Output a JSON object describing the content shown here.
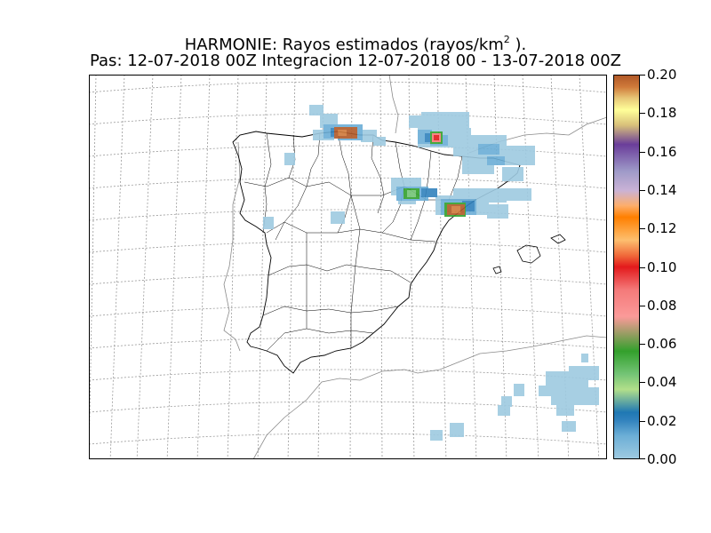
{
  "title": {
    "line1_main": "HARMONIE: Rayos estimados  (rayos/km",
    "line1_exp": "2",
    "line1_end": " ).",
    "line2": "Pas: 12-07-2018 00Z Integracion 12-07-2018 00 - 13-07-2018 00Z"
  },
  "colorbar": {
    "ticks": [
      "0.00",
      "0.02",
      "0.04",
      "0.06",
      "0.08",
      "0.10",
      "0.12",
      "0.14",
      "0.16",
      "0.18",
      "0.20"
    ],
    "range": [
      0.0,
      0.2
    ]
  },
  "colors": {
    "low": "#9ecae1",
    "mid_blue": "#6baed6",
    "green": "#33a02c",
    "red": "#e31a1c",
    "brown": "#b15928"
  }
}
